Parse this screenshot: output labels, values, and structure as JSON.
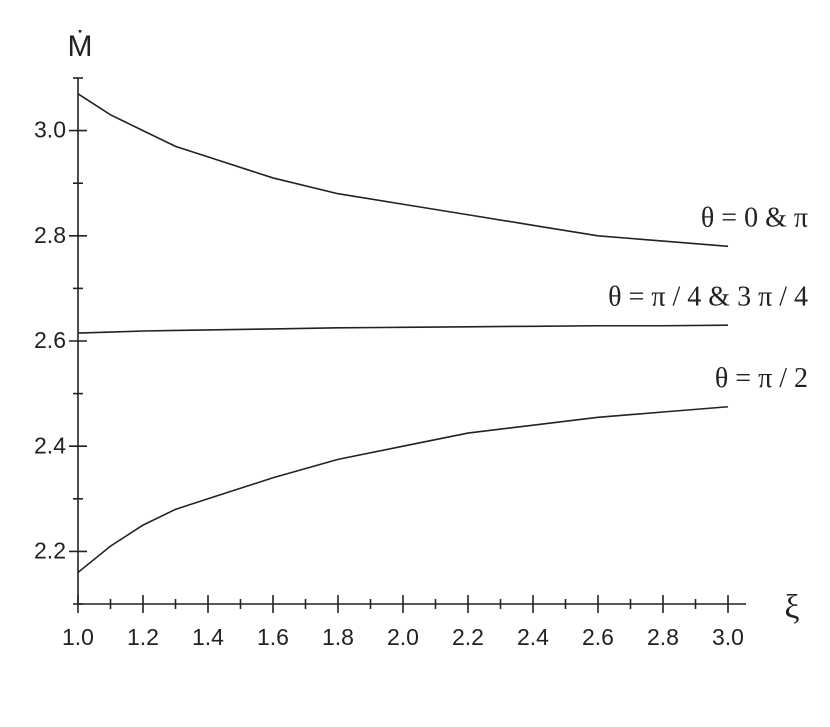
{
  "chart_data": {
    "type": "line",
    "x_label": "ξ",
    "y_label": "Ṁ",
    "x": [
      1.0,
      1.1,
      1.2,
      1.3,
      1.4,
      1.6,
      1.8,
      2.0,
      2.2,
      2.4,
      2.6,
      2.8,
      3.0
    ],
    "series": [
      {
        "name": "θ = 0 & π",
        "color": "#222222",
        "values": [
          3.07,
          3.03,
          3.0,
          2.97,
          2.95,
          2.91,
          2.88,
          2.86,
          2.84,
          2.82,
          2.8,
          2.79,
          2.78
        ]
      },
      {
        "name": "θ = π / 4 & 3 π / 4",
        "color": "#222222",
        "values": [
          2.615,
          2.617,
          2.619,
          2.62,
          2.621,
          2.623,
          2.625,
          2.626,
          2.627,
          2.628,
          2.629,
          2.629,
          2.63
        ]
      },
      {
        "name": "θ = π / 2",
        "color": "#222222",
        "values": [
          2.16,
          2.21,
          2.25,
          2.28,
          2.3,
          2.34,
          2.375,
          2.4,
          2.425,
          2.44,
          2.455,
          2.465,
          2.475
        ]
      }
    ],
    "xlim": [
      1.0,
      3.0
    ],
    "ylim": [
      2.1,
      3.1
    ],
    "xticks": [
      {
        "value": 1,
        "label": "1.0"
      },
      1.2,
      1.4,
      1.6,
      1.8,
      {
        "value": 2,
        "label": "2.0"
      },
      2.2,
      2.4,
      2.6,
      2.8,
      {
        "value": 3,
        "label": "3.0"
      }
    ],
    "xminorticks": [
      1.1,
      1.3,
      1.5,
      1.7,
      1.9,
      2.1,
      2.3,
      2.5,
      2.7,
      2.9
    ],
    "yticks": [
      2.2,
      2.4,
      2.6,
      2.8,
      {
        "value": 3,
        "label": "3.0"
      }
    ],
    "yminorticks": [
      2.1,
      2.3,
      2.5,
      2.7,
      2.9,
      3.1
    ],
    "grid": false
  }
}
